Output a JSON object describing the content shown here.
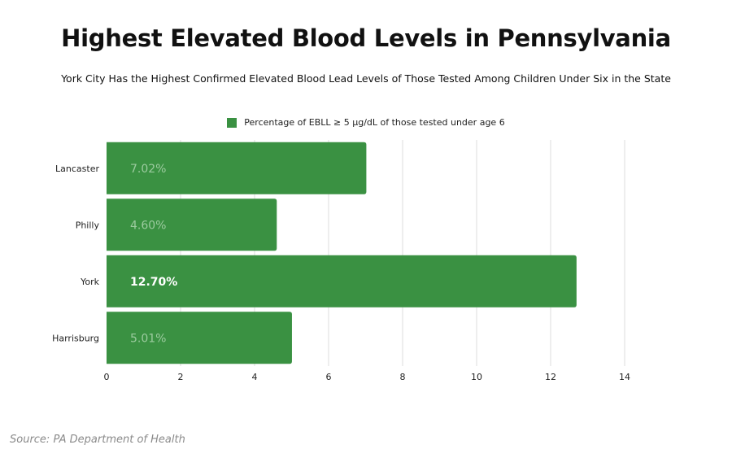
{
  "chart_data": {
    "type": "bar",
    "orientation": "horizontal",
    "title": "Highest Elevated Blood Levels in Pennsylvania",
    "subtitle": "York City Has the Highest Confirmed Elevated Blood Lead Levels of Those Tested Among Children Under Six in the State",
    "categories": [
      "Lancaster",
      "Philly",
      "York",
      "Harrisburg"
    ],
    "series": [
      {
        "name": "Percentage of EBLL ≥ 5 µg/dL of those tested under age 6",
        "values": [
          7.02,
          4.6,
          12.7,
          5.01
        ],
        "data_labels": [
          "7.02%",
          "4.60%",
          "12.70%",
          "5.01%"
        ]
      }
    ],
    "xlim": [
      0,
      14
    ],
    "xticks": [
      0,
      2,
      4,
      6,
      8,
      10,
      12,
      14
    ],
    "grid": true,
    "legend_position": "top-center",
    "bar_color": "#3a9142",
    "highlight_category": "York",
    "source": "Source: PA Department of Health"
  }
}
